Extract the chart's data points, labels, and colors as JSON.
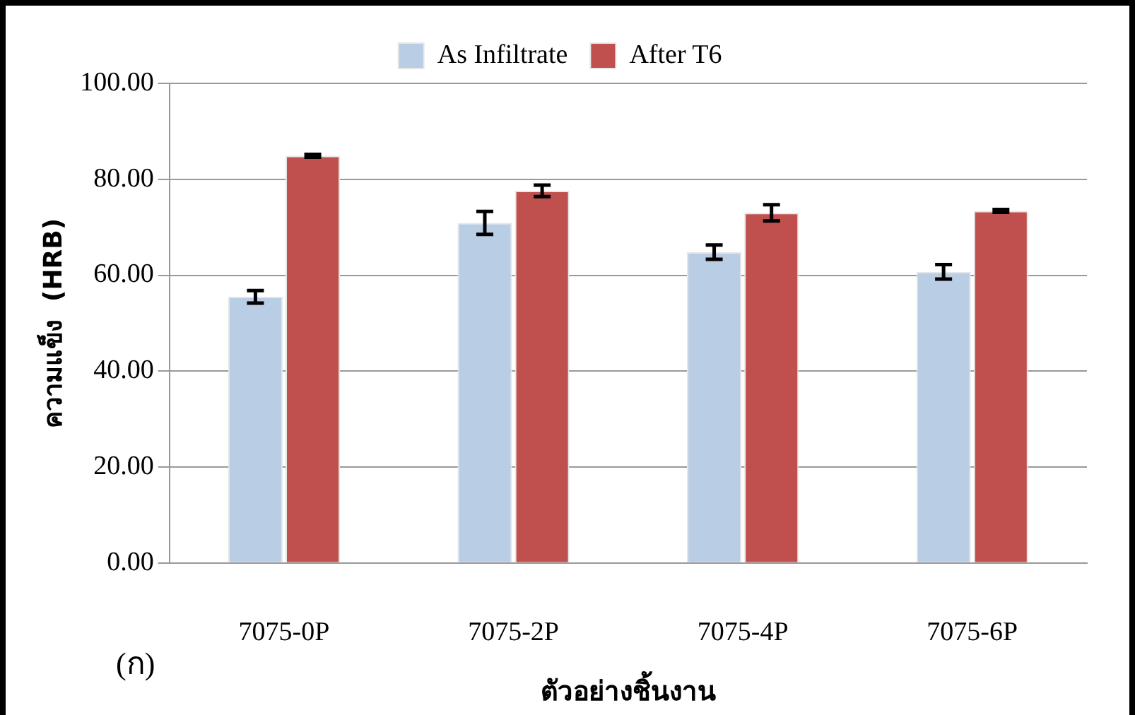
{
  "chart_data": {
    "type": "bar",
    "xlabel": "ตัวอย่างชิ้นงาน",
    "ylabel": "ความแข็ง  (HRB)",
    "categories": [
      "7075-0P",
      "7075-2P",
      "7075-4P",
      "7075-6P"
    ],
    "series": [
      {
        "name": "As Infiltrate",
        "color": "#b9cde5",
        "values": [
          55.5,
          70.9,
          64.8,
          60.7
        ],
        "errors": [
          1.3,
          2.4,
          1.5,
          1.5
        ]
      },
      {
        "name": "After T6",
        "color": "#c0504d",
        "values": [
          84.9,
          77.6,
          73.0,
          73.4
        ],
        "errors": [
          0.3,
          1.2,
          1.7,
          0.3
        ]
      }
    ],
    "ylim": [
      0,
      100
    ],
    "yticks": [
      {
        "value": 0,
        "label": "0.00"
      },
      {
        "value": 20,
        "label": "20.00"
      },
      {
        "value": 40,
        "label": "40.00"
      },
      {
        "value": 60,
        "label": "60.00"
      },
      {
        "value": 80,
        "label": "80.00"
      },
      {
        "value": 100,
        "label": "100.00"
      }
    ],
    "grid": "y",
    "legend": "top",
    "annotations": [
      "(ก)"
    ]
  }
}
